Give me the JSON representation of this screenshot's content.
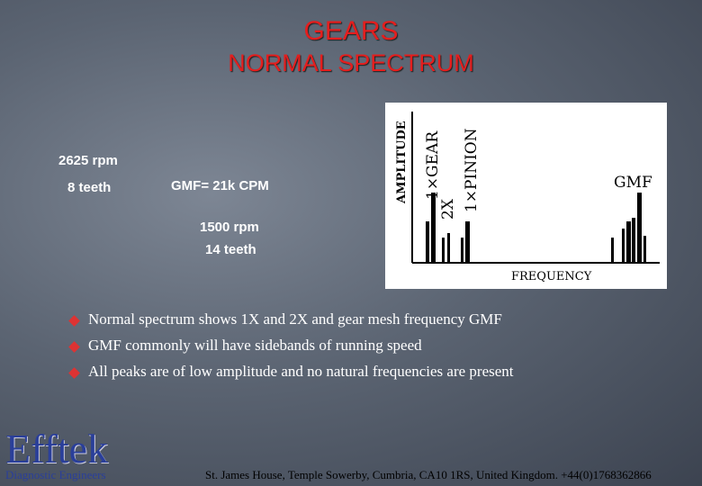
{
  "title": {
    "line1": "GEARS",
    "line2": "NORMAL  SPECTRUM"
  },
  "notes": {
    "gear_rpm": "2625 rpm",
    "gear_teeth": "8 teeth",
    "gmf": "GMF= 21k CPM",
    "pinion_rpm": "1500 rpm",
    "pinion_teeth": "14 teeth"
  },
  "diagram": {
    "amplitude": "AMPLITUDE",
    "gear": "1×GEAR",
    "two_x": "2X",
    "pinion": "1×PINION",
    "gmf": "GMF",
    "frequency": "FREQUENCY"
  },
  "bullets": [
    "Normal spectrum shows 1X and 2X and gear mesh frequency GMF",
    "GMF commonly will have sidebands of running speed",
    "All peaks are of low amplitude and no natural frequencies are present"
  ],
  "logo": {
    "name": "Efftek",
    "tagline": "Diagnostic Engineers"
  },
  "footer": "St. James House, Temple Sowerby, Cumbria, CA10 1RS, United Kingdom. +44(0)1768362866"
}
